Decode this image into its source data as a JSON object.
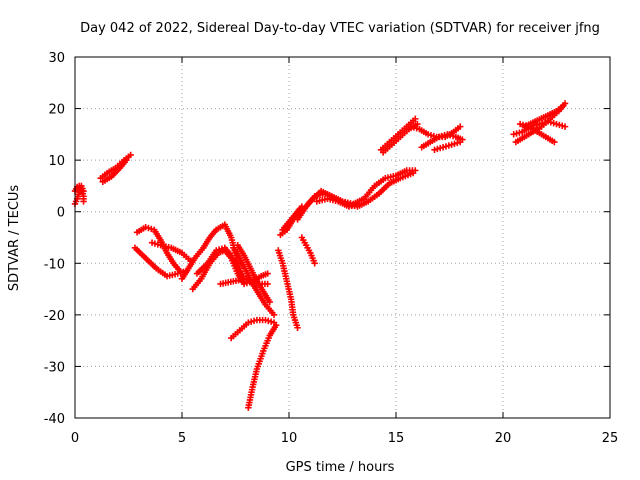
{
  "chart_data": {
    "type": "scatter",
    "title": "Day 042 of 2022, Sidereal Day-to-day VTEC variation (SDTVAR) for receiver jfng",
    "xlabel": "GPS time / hours",
    "ylabel": "SDTVAR / TECUs",
    "xlim": [
      0,
      25
    ],
    "ylim": [
      -40,
      30
    ],
    "xticks": [
      "0",
      "5",
      "10",
      "15",
      "20",
      "25"
    ],
    "yticks": [
      "30",
      "20",
      "10",
      "0",
      "-10",
      "-20",
      "-30",
      "-40"
    ],
    "grid": true,
    "marker": "plus",
    "color": "#ff0000",
    "tracks": [
      [
        [
          0.0,
          4.0
        ],
        [
          0.1,
          4.8
        ],
        [
          0.2,
          5.0
        ],
        [
          0.3,
          4.5
        ],
        [
          0.4,
          3.0
        ],
        [
          0.4,
          2.0
        ]
      ],
      [
        [
          0.0,
          1.5
        ],
        [
          0.1,
          2.5
        ],
        [
          0.2,
          3.8
        ],
        [
          0.3,
          5.0
        ],
        [
          0.4,
          4.0
        ]
      ],
      [
        [
          1.2,
          6.5
        ],
        [
          1.5,
          7.5
        ],
        [
          1.9,
          8.5
        ],
        [
          2.3,
          10.0
        ],
        [
          2.6,
          11.0
        ]
      ],
      [
        [
          1.3,
          5.8
        ],
        [
          1.7,
          6.8
        ],
        [
          2.1,
          8.5
        ],
        [
          2.4,
          10.0
        ]
      ],
      [
        [
          2.8,
          -7.0
        ],
        [
          3.3,
          -9.0
        ],
        [
          3.8,
          -11.0
        ],
        [
          4.3,
          -12.5
        ],
        [
          4.8,
          -12.0
        ],
        [
          5.2,
          -11.5
        ]
      ],
      [
        [
          2.9,
          -4.0
        ],
        [
          3.3,
          -3.0
        ],
        [
          3.7,
          -3.5
        ],
        [
          4.0,
          -5.5
        ],
        [
          4.3,
          -8.0
        ],
        [
          4.6,
          -10.0
        ],
        [
          4.9,
          -11.5
        ]
      ],
      [
        [
          3.6,
          -6.0
        ],
        [
          4.0,
          -6.5
        ],
        [
          4.5,
          -7.0
        ],
        [
          5.0,
          -8.0
        ],
        [
          5.4,
          -9.5
        ]
      ],
      [
        [
          5.0,
          -13.0
        ],
        [
          5.3,
          -11.0
        ],
        [
          5.6,
          -9.0
        ],
        [
          6.0,
          -7.0
        ],
        [
          6.3,
          -5.0
        ],
        [
          6.6,
          -3.5
        ],
        [
          7.0,
          -2.5
        ],
        [
          7.3,
          -5.0
        ],
        [
          7.5,
          -8.0
        ],
        [
          7.7,
          -11.0
        ],
        [
          7.8,
          -13.5
        ]
      ],
      [
        [
          5.5,
          -15.0
        ],
        [
          5.9,
          -13.0
        ],
        [
          6.3,
          -10.0
        ],
        [
          6.7,
          -8.0
        ],
        [
          7.0,
          -7.5
        ],
        [
          7.3,
          -9.0
        ],
        [
          7.6,
          -12.0
        ],
        [
          7.9,
          -14.0
        ],
        [
          8.3,
          -13.5
        ],
        [
          8.7,
          -12.5
        ],
        [
          9.0,
          -12.0
        ]
      ],
      [
        [
          5.7,
          -12.0
        ],
        [
          6.2,
          -10.0
        ],
        [
          6.6,
          -7.5
        ],
        [
          7.0,
          -7.0
        ],
        [
          7.3,
          -8.5
        ],
        [
          7.6,
          -11.0
        ],
        [
          7.9,
          -13.0
        ]
      ],
      [
        [
          6.8,
          -14.0
        ],
        [
          7.4,
          -13.5
        ],
        [
          8.0,
          -13.0
        ],
        [
          8.5,
          -14.0
        ],
        [
          9.0,
          -14.0
        ]
      ],
      [
        [
          7.4,
          -7.0
        ],
        [
          7.7,
          -9.0
        ],
        [
          8.0,
          -11.5
        ],
        [
          8.3,
          -14.0
        ],
        [
          8.6,
          -16.0
        ],
        [
          8.9,
          -18.0
        ],
        [
          9.3,
          -20.0
        ]
      ],
      [
        [
          7.6,
          -6.5
        ],
        [
          7.9,
          -8.5
        ],
        [
          8.2,
          -11.0
        ],
        [
          8.5,
          -13.5
        ],
        [
          8.8,
          -15.5
        ],
        [
          9.1,
          -17.5
        ]
      ],
      [
        [
          7.3,
          -24.5
        ],
        [
          7.7,
          -23.0
        ],
        [
          8.1,
          -21.5
        ],
        [
          8.5,
          -21.0
        ],
        [
          8.9,
          -21.0
        ],
        [
          9.3,
          -21.5
        ]
      ],
      [
        [
          8.1,
          -38.0
        ],
        [
          8.3,
          -34.0
        ],
        [
          8.5,
          -30.5
        ],
        [
          8.8,
          -27.0
        ],
        [
          9.1,
          -24.0
        ],
        [
          9.4,
          -22.0
        ]
      ],
      [
        [
          9.5,
          -7.5
        ],
        [
          9.7,
          -10.0
        ],
        [
          9.9,
          -13.5
        ],
        [
          10.1,
          -17.0
        ],
        [
          10.2,
          -20.0
        ],
        [
          10.4,
          -22.5
        ]
      ],
      [
        [
          9.7,
          -3.5
        ],
        [
          10.0,
          -2.0
        ],
        [
          10.3,
          -0.5
        ],
        [
          10.6,
          1.0
        ]
      ],
      [
        [
          9.6,
          -4.5
        ],
        [
          9.9,
          -3.5
        ],
        [
          10.2,
          -1.5
        ],
        [
          10.5,
          0.5
        ]
      ],
      [
        [
          10.6,
          -5.0
        ],
        [
          10.8,
          -6.5
        ],
        [
          11.0,
          -8.0
        ],
        [
          11.2,
          -10.0
        ]
      ],
      [
        [
          10.4,
          -1.5
        ],
        [
          10.8,
          1.0
        ],
        [
          11.2,
          3.0
        ],
        [
          11.7,
          3.5
        ],
        [
          12.2,
          2.5
        ],
        [
          12.7,
          1.5
        ],
        [
          13.2,
          1.0
        ],
        [
          13.7,
          2.0
        ],
        [
          14.2,
          3.5
        ],
        [
          14.7,
          5.5
        ],
        [
          15.2,
          6.5
        ],
        [
          15.8,
          7.5
        ]
      ],
      [
        [
          10.5,
          -0.5
        ],
        [
          11.0,
          2.0
        ],
        [
          11.5,
          4.0
        ],
        [
          12.0,
          3.0
        ],
        [
          12.5,
          2.0
        ],
        [
          13.0,
          1.5
        ],
        [
          13.5,
          2.5
        ],
        [
          14.0,
          5.0
        ],
        [
          14.5,
          6.5
        ],
        [
          15.0,
          7.0
        ],
        [
          15.5,
          8.0
        ],
        [
          15.9,
          8.0
        ]
      ],
      [
        [
          11.3,
          2.0
        ],
        [
          11.8,
          2.5
        ],
        [
          12.3,
          2.0
        ],
        [
          12.8,
          1.0
        ],
        [
          13.3,
          1.5
        ]
      ],
      [
        [
          14.3,
          12.0
        ],
        [
          14.7,
          13.5
        ],
        [
          15.1,
          15.0
        ],
        [
          15.5,
          16.5
        ],
        [
          15.9,
          18.0
        ]
      ],
      [
        [
          14.4,
          11.5
        ],
        [
          14.8,
          13.0
        ],
        [
          15.2,
          14.5
        ],
        [
          15.6,
          16.0
        ],
        [
          16.0,
          17.0
        ]
      ],
      [
        [
          15.7,
          16.5
        ],
        [
          16.1,
          16.0
        ],
        [
          16.5,
          15.0
        ],
        [
          16.9,
          14.5
        ],
        [
          17.3,
          14.5
        ],
        [
          17.7,
          15.5
        ],
        [
          18.0,
          16.5
        ]
      ],
      [
        [
          16.2,
          12.5
        ],
        [
          16.6,
          13.5
        ],
        [
          17.0,
          14.5
        ],
        [
          17.4,
          15.0
        ],
        [
          17.8,
          14.5
        ],
        [
          18.1,
          14.0
        ]
      ],
      [
        [
          16.8,
          12.0
        ],
        [
          17.2,
          12.5
        ],
        [
          17.6,
          13.0
        ],
        [
          18.0,
          13.5
        ]
      ],
      [
        [
          20.5,
          15.0
        ],
        [
          20.9,
          15.5
        ],
        [
          21.3,
          16.5
        ],
        [
          21.7,
          17.0
        ],
        [
          22.1,
          17.5
        ],
        [
          22.5,
          17.0
        ],
        [
          22.9,
          16.5
        ]
      ],
      [
        [
          20.6,
          13.5
        ],
        [
          21.0,
          14.5
        ],
        [
          21.4,
          15.5
        ],
        [
          21.8,
          16.5
        ],
        [
          22.2,
          18.0
        ],
        [
          22.6,
          19.5
        ],
        [
          22.9,
          21.0
        ]
      ],
      [
        [
          20.8,
          17.0
        ],
        [
          21.2,
          16.5
        ],
        [
          21.6,
          15.5
        ],
        [
          22.0,
          14.5
        ],
        [
          22.4,
          13.5
        ]
      ],
      [
        [
          21.0,
          16.5
        ],
        [
          21.5,
          17.5
        ],
        [
          22.0,
          18.5
        ],
        [
          22.5,
          19.5
        ],
        [
          22.8,
          20.5
        ]
      ]
    ]
  }
}
